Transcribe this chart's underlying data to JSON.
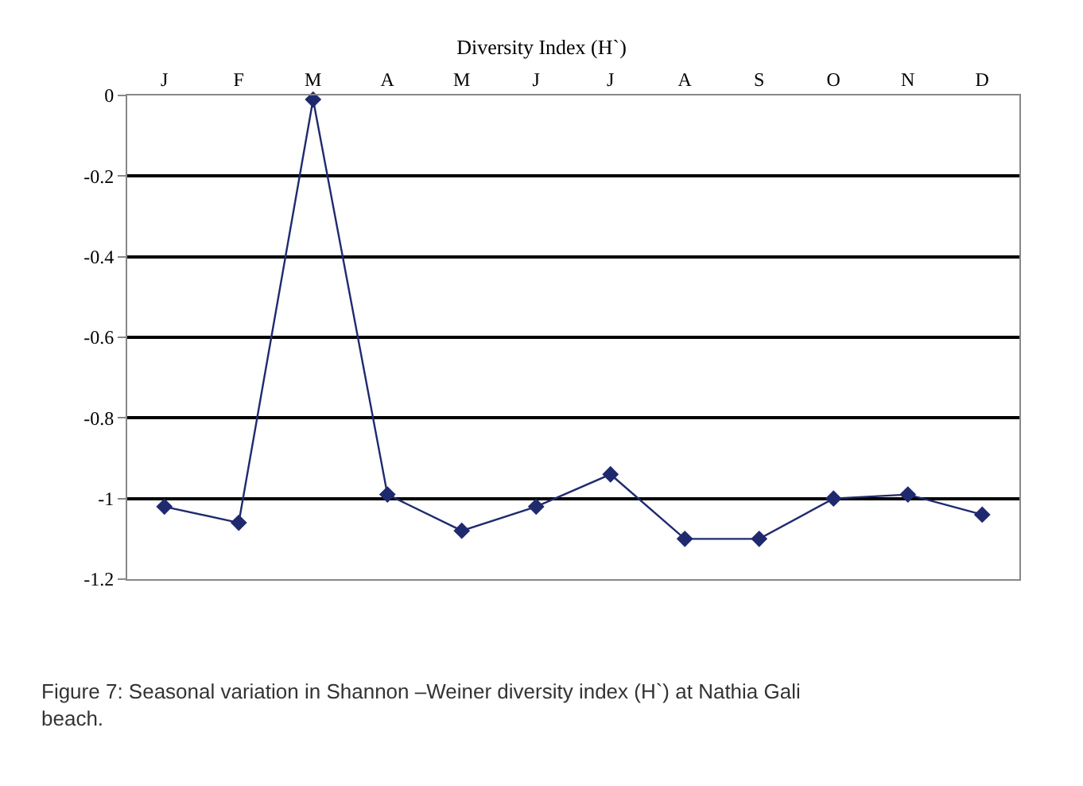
{
  "chart_data": {
    "type": "line",
    "title": "Diversity Index (H`)",
    "categories": [
      "J",
      "F",
      "M",
      "A",
      "M",
      "J",
      "J",
      "A",
      "S",
      "O",
      "N",
      "D"
    ],
    "series": [
      {
        "color": "#1f2a6e",
        "values": [
          -1.02,
          -1.06,
          -0.01,
          -0.99,
          -1.08,
          -1.02,
          -0.94,
          -1.1,
          -1.1,
          -1.0,
          -0.99,
          -1.04
        ]
      }
    ],
    "ylim": [
      -1.2,
      0
    ],
    "yticks": [
      0,
      -0.2,
      -0.4,
      -0.6,
      -0.8,
      -1,
      -1.2
    ],
    "grid": "y",
    "marker": "diamond",
    "line_style": "solid",
    "legend": false,
    "annotations": [
      "Figure 7: Seasonal variation in Shannon –Weiner diversity index (H`) at Nathia Gali beach."
    ]
  }
}
